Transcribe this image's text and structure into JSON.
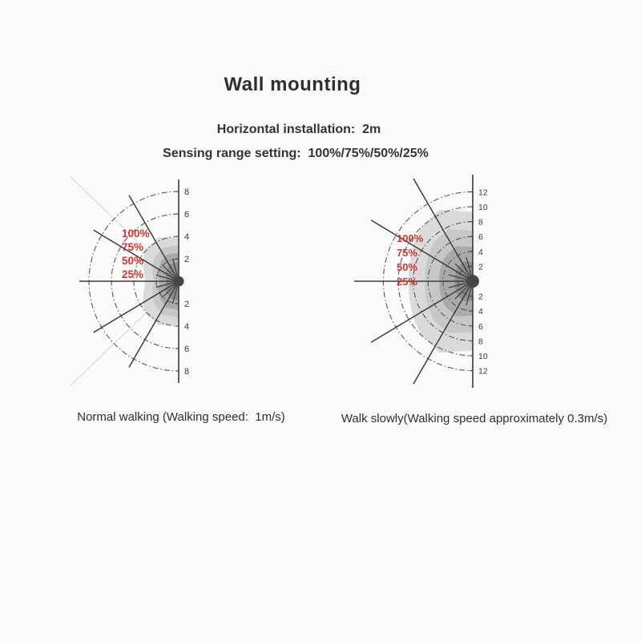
{
  "page": {
    "title": "Wall mounting",
    "subtitle_installation": "Horizontal installation： 2m",
    "subtitle_sensing_range": "Sensing range setting： 100%/75%/50%/25%"
  },
  "colors": {
    "text": "#333333",
    "red_label": "#cf3832",
    "axis": "#3a3a3a",
    "line": "#3d3d3d",
    "arc": "#575757",
    "faint_line": "#dcdcdc",
    "tick_text": "#3a3a3a",
    "band_grays": [
      "#dadada",
      "#c7c7c7",
      "#aaaaaa",
      "#8d8d8d"
    ],
    "center_dot": "#474747"
  },
  "chart_data": [
    {
      "type": "polar_sensing_diagram",
      "name": "Normal walking",
      "walking_speed": "1m/s",
      "caption": "Normal walking (Walking speed： 1m/s)",
      "axis_tick_values": [
        2,
        4,
        6,
        8
      ],
      "arc_radii_m": [
        2,
        4,
        6,
        8
      ],
      "radial_line_angles_deg": [
        0,
        31,
        60,
        -31,
        -60
      ],
      "short_spoke_angles_deg": [
        75,
        45,
        15,
        -15,
        -45,
        -75
      ],
      "percent_labels": [
        "100%",
        "75%",
        "50%",
        "25%"
      ],
      "profile_angles_deg": [
        90,
        65,
        45,
        30,
        15,
        0
      ],
      "bands": [
        {
          "label": "100%",
          "radii_m": [
            3.9,
            4.3,
            4.1,
            3.7,
            3.2,
            3.0
          ]
        },
        {
          "label": "75%",
          "radii_m": [
            3.2,
            3.3,
            3.0,
            2.7,
            2.4,
            2.2
          ]
        },
        {
          "label": "50%",
          "radii_m": [
            2.55,
            2.6,
            2.3,
            2.05,
            1.85,
            1.7
          ]
        },
        {
          "label": "25%",
          "radii_m": [
            1.7,
            1.7,
            1.5,
            1.35,
            1.2,
            1.1
          ]
        }
      ]
    },
    {
      "type": "polar_sensing_diagram",
      "name": "Walk slowly",
      "walking_speed": "approximately 0.3m/s",
      "caption": "Walk slowly(Walking speed approximately 0.3m/s)",
      "axis_tick_values": [
        2,
        4,
        6,
        8,
        10,
        12
      ],
      "arc_radii_m": [
        2,
        4,
        6,
        8,
        10,
        12
      ],
      "radial_line_angles_deg": [
        0,
        31,
        60,
        -31,
        -60
      ],
      "short_spoke_angles_deg": [
        75,
        45,
        15,
        -15,
        -45,
        -75
      ],
      "percent_labels": [
        "100%",
        "75%",
        "50%",
        "25%"
      ],
      "profile_angles_deg": [
        90,
        65,
        45,
        30,
        15,
        0
      ],
      "bands": [
        {
          "label": "100%",
          "radii_m": [
            9.3,
            10.6,
            9.9,
            9.3,
            8.8,
            8.6
          ]
        },
        {
          "label": "75%",
          "radii_m": [
            6.8,
            7.7,
            7.4,
            6.9,
            6.6,
            6.4
          ]
        },
        {
          "label": "50%",
          "radii_m": [
            4.6,
            5.2,
            5.0,
            4.8,
            4.6,
            4.5
          ]
        },
        {
          "label": "25%",
          "radii_m": [
            2.6,
            2.9,
            2.8,
            2.6,
            2.5,
            2.4
          ]
        }
      ]
    }
  ]
}
